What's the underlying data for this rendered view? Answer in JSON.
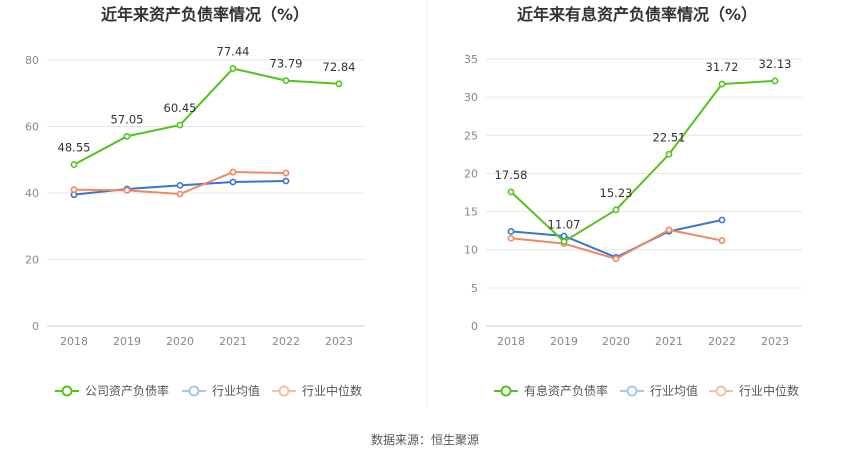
{
  "chart_data": [
    {
      "type": "line",
      "title": "近年来资产负债率情况（%）",
      "categories": [
        "2018",
        "2019",
        "2020",
        "2021",
        "2022",
        "2023"
      ],
      "ylim": [
        0,
        80
      ],
      "yticks": [
        0,
        20,
        40,
        60,
        80
      ],
      "grid": true,
      "legend_position": "bottom",
      "series": [
        {
          "name": "公司资产负债率",
          "color": "#52c41a",
          "values": [
            48.55,
            57.05,
            60.45,
            77.44,
            73.79,
            72.84
          ],
          "labels": [
            "48.55",
            "57.05",
            "60.45",
            "77.44",
            "73.79",
            "72.84"
          ]
        },
        {
          "name": "行业均值",
          "color": "#3a75d4",
          "values": [
            39.5,
            41.2,
            42.3,
            43.3,
            43.6,
            null
          ]
        },
        {
          "name": "行业中位数",
          "color": "#f08860",
          "values": [
            41.0,
            40.8,
            39.7,
            46.3,
            46.0,
            null
          ]
        }
      ]
    },
    {
      "type": "line",
      "title": "近年来有息资产负债率情况（%）",
      "categories": [
        "2018",
        "2019",
        "2020",
        "2021",
        "2022",
        "2023"
      ],
      "ylim": [
        0,
        35
      ],
      "yticks": [
        0,
        5,
        10,
        15,
        20,
        25,
        30,
        35
      ],
      "grid": true,
      "legend_position": "bottom",
      "series": [
        {
          "name": "有息资产负债率",
          "color": "#52c41a",
          "values": [
            17.58,
            11.07,
            15.23,
            22.51,
            31.72,
            32.13
          ],
          "labels": [
            "17.58",
            "11.07",
            "15.23",
            "22.51",
            "31.72",
            "32.13"
          ]
        },
        {
          "name": "行业均值",
          "color": "#3a75d4",
          "values": [
            12.4,
            11.8,
            9.0,
            12.4,
            13.9,
            null
          ]
        },
        {
          "name": "行业中位数",
          "color": "#f08860",
          "values": [
            11.5,
            10.8,
            8.8,
            12.6,
            11.2,
            null
          ]
        }
      ]
    }
  ],
  "footer": {
    "source": "数据来源：恒生聚源"
  }
}
